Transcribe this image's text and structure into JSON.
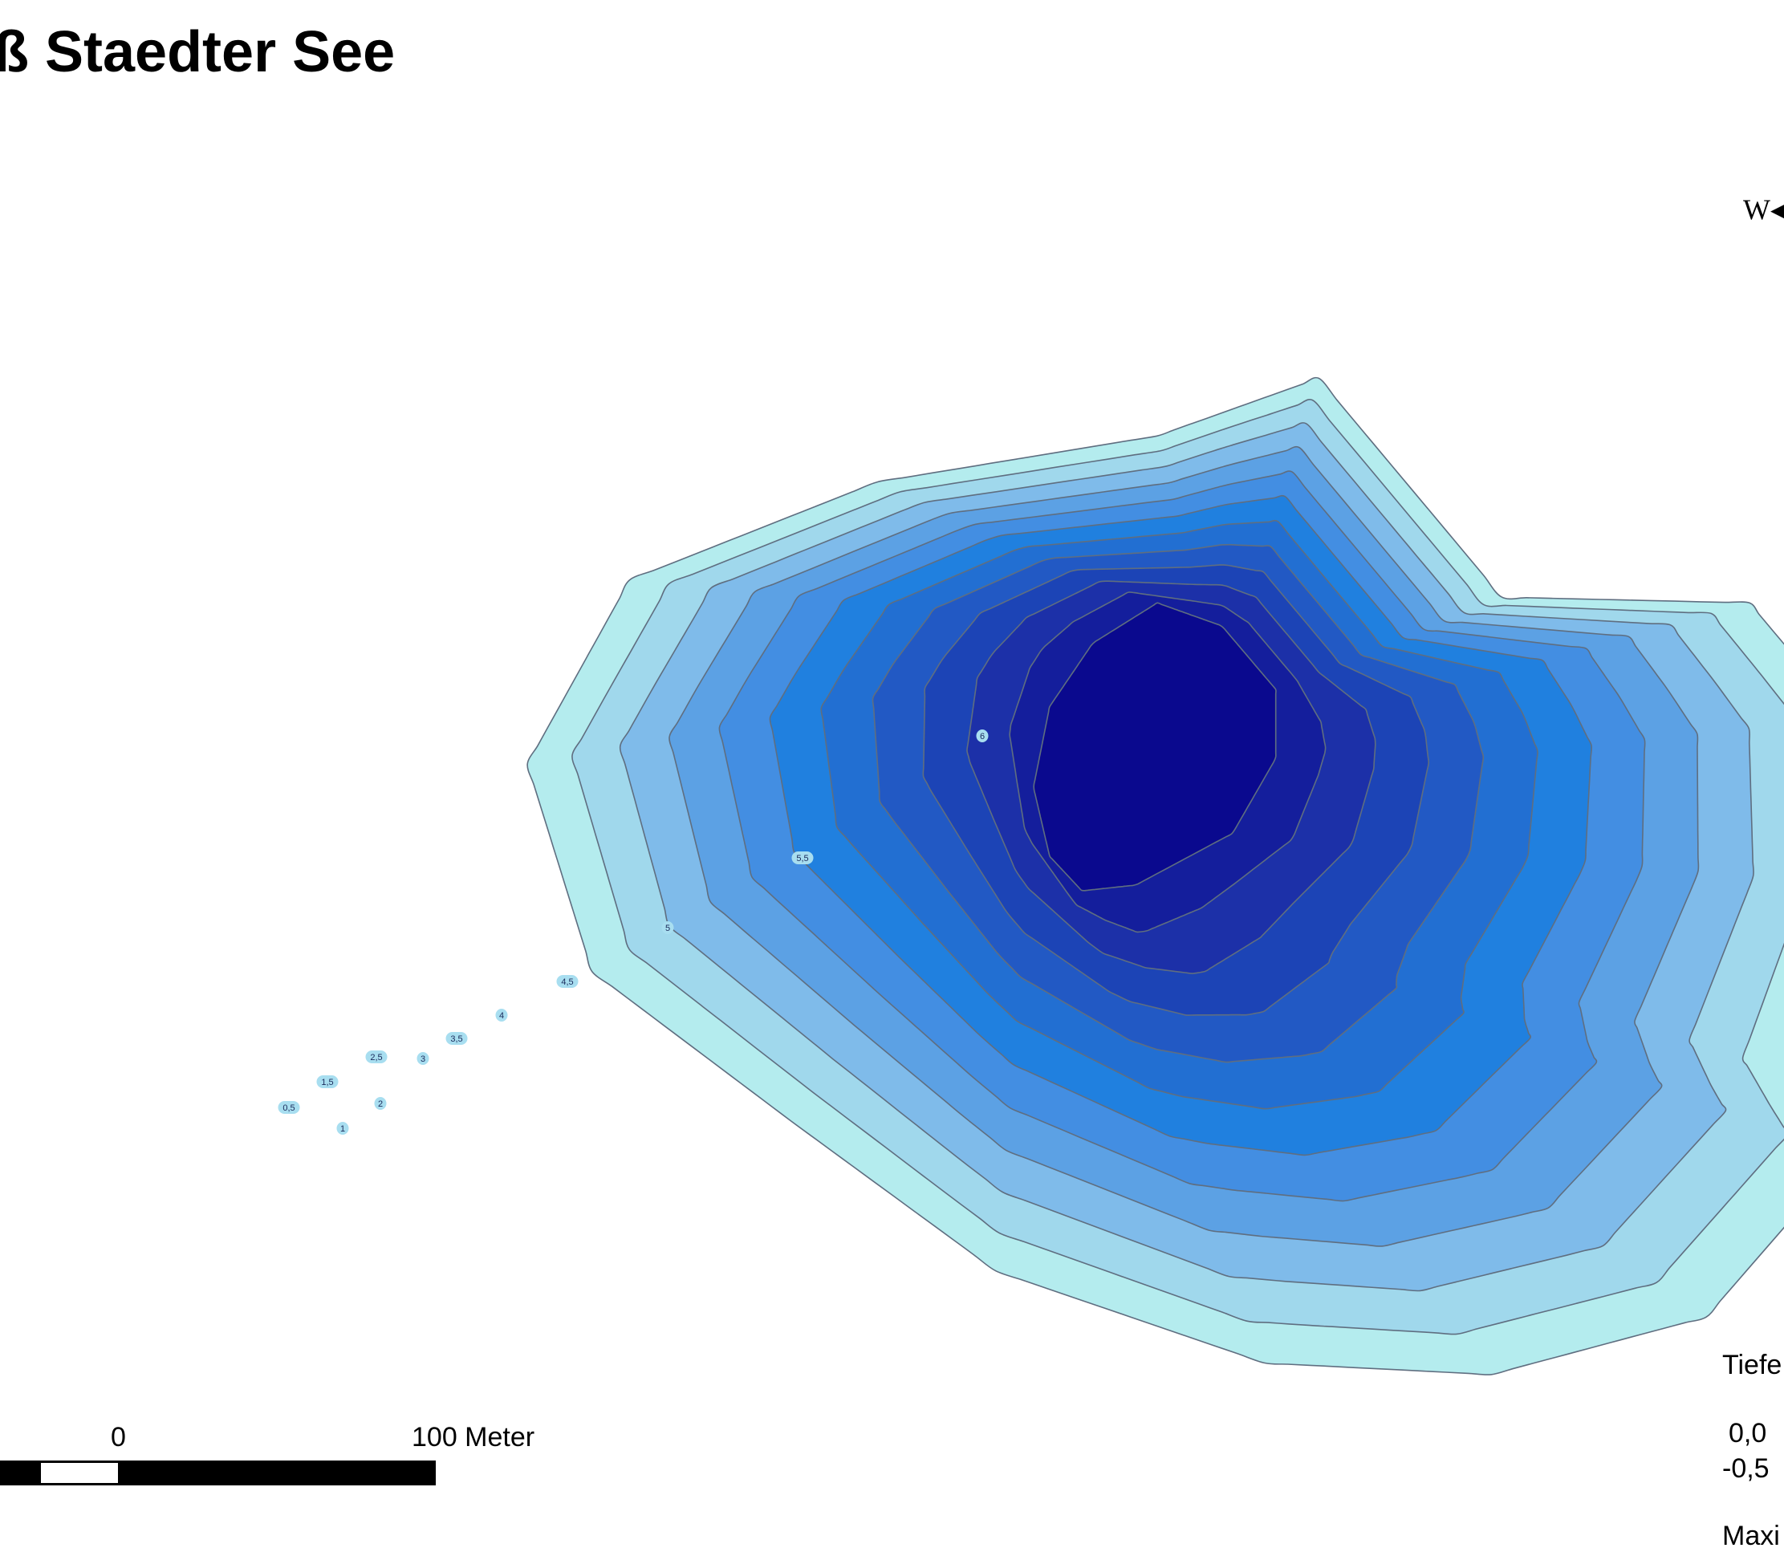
{
  "map": {
    "title": "ß Staedter See",
    "compass_letter": "W",
    "contour_colors": [
      "#b4ecee",
      "#a0d8ec",
      "#7fbbea",
      "#5ca1e4",
      "#438ee2",
      "#2080df",
      "#226fd2",
      "#2259c4",
      "#1c44b6",
      "#1c30a8",
      "#141e9c",
      "#0a098e"
    ],
    "outline_color": "#5f6e80",
    "depth_labels": [
      "0,5",
      "1",
      "1,5",
      "2",
      "2,5",
      "3",
      "3,5",
      "4",
      "4,5",
      "5",
      "5,5",
      "6"
    ],
    "depth_label_color": "#a8def0"
  },
  "scale": {
    "zero_label": "0",
    "end_label": "100 Meter"
  },
  "legend": {
    "title": "Tiefe",
    "row1": "0,0",
    "row2": "-0,5",
    "footer": "Maxi"
  }
}
